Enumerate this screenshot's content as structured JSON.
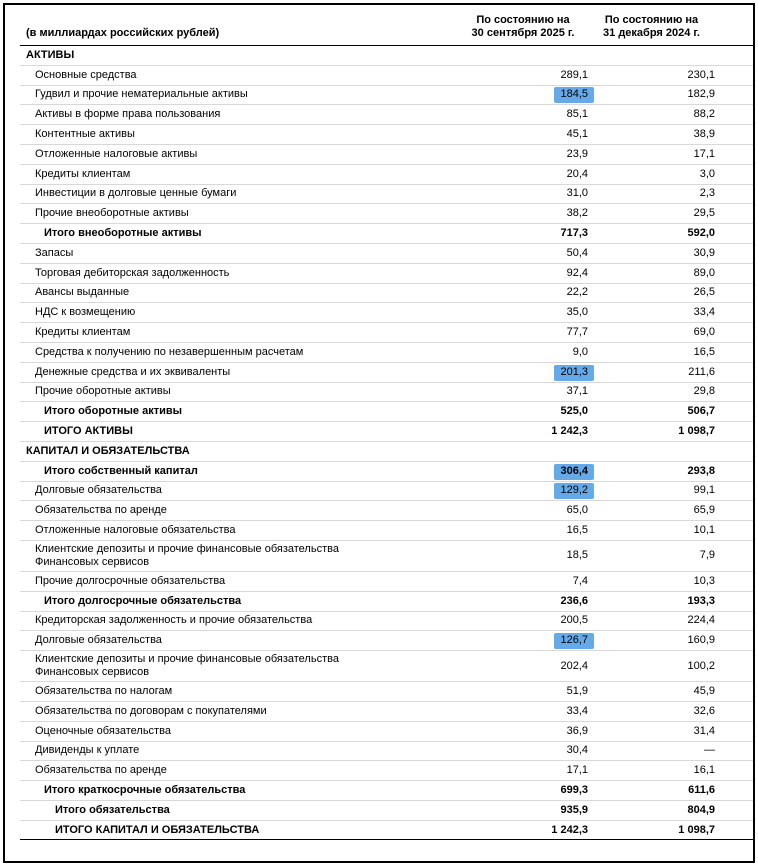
{
  "colors": {
    "highlight": "#64a9e8",
    "row_border": "#d8d8d8",
    "table_border": "#000000"
  },
  "table": {
    "unit_label": "(в миллиардах российских рублей)",
    "columns": [
      {
        "line1": "По состоянию на",
        "line2": "30 сентября 2025 г."
      },
      {
        "line1": "По состоянию на",
        "line2": "31 декабря 2024 г."
      }
    ],
    "rows": [
      {
        "label": "АКТИВЫ",
        "v1": "",
        "v2": "",
        "type": "section",
        "indent": 0
      },
      {
        "label": "Основные средства",
        "v1": "289,1",
        "v2": "230,1",
        "type": "normal",
        "indent": 1
      },
      {
        "label": "Гудвил и прочие нематериальные активы",
        "v1": "184,5",
        "v2": "182,9",
        "type": "normal",
        "indent": 1,
        "hl": true
      },
      {
        "label": "Активы в форме права пользования",
        "v1": "85,1",
        "v2": "88,2",
        "type": "normal",
        "indent": 1
      },
      {
        "label": "Контентные активы",
        "v1": "45,1",
        "v2": "38,9",
        "type": "normal",
        "indent": 1
      },
      {
        "label": "Отложенные налоговые активы",
        "v1": "23,9",
        "v2": "17,1",
        "type": "normal",
        "indent": 1
      },
      {
        "label": "Кредиты клиентам",
        "v1": "20,4",
        "v2": "3,0",
        "type": "normal",
        "indent": 1
      },
      {
        "label": "Инвестиции в долговые ценные бумаги",
        "v1": "31,0",
        "v2": "2,3",
        "type": "normal",
        "indent": 1
      },
      {
        "label": "Прочие внеоборотные активы",
        "v1": "38,2",
        "v2": "29,5",
        "type": "normal",
        "indent": 1
      },
      {
        "label": "Итого внеоборотные активы",
        "v1": "717,3",
        "v2": "592,0",
        "type": "subtotal",
        "indent": 2
      },
      {
        "label": "Запасы",
        "v1": "50,4",
        "v2": "30,9",
        "type": "normal",
        "indent": 1
      },
      {
        "label": "Торговая дебиторская задолженность",
        "v1": "92,4",
        "v2": "89,0",
        "type": "normal",
        "indent": 1
      },
      {
        "label": "Авансы выданные",
        "v1": "22,2",
        "v2": "26,5",
        "type": "normal",
        "indent": 1
      },
      {
        "label": "НДС к возмещению",
        "v1": "35,0",
        "v2": "33,4",
        "type": "normal",
        "indent": 1
      },
      {
        "label": "Кредиты клиентам",
        "v1": "77,7",
        "v2": "69,0",
        "type": "normal",
        "indent": 1
      },
      {
        "label": "Средства к получению по незавершенным расчетам",
        "v1": "9,0",
        "v2": "16,5",
        "type": "normal",
        "indent": 1
      },
      {
        "label": "Денежные средства и их эквиваленты",
        "v1": "201,3",
        "v2": "211,6",
        "type": "normal",
        "indent": 1,
        "hl": true
      },
      {
        "label": "Прочие оборотные активы",
        "v1": "37,1",
        "v2": "29,8",
        "type": "normal",
        "indent": 1
      },
      {
        "label": "Итого оборотные активы",
        "v1": "525,0",
        "v2": "506,7",
        "type": "subtotal",
        "indent": 2
      },
      {
        "label": "ИТОГО АКТИВЫ",
        "v1": "1 242,3",
        "v2": "1 098,7",
        "type": "total",
        "indent": 2
      },
      {
        "label": "КАПИТАЛ И ОБЯЗАТЕЛЬСТВА",
        "v1": "",
        "v2": "",
        "type": "section",
        "indent": 0
      },
      {
        "label": "Итого собственный капитал",
        "v1": "306,4",
        "v2": "293,8",
        "type": "subtotal",
        "indent": 2,
        "hl": true
      },
      {
        "label": "Долговые обязательства",
        "v1": "129,2",
        "v2": "99,1",
        "type": "normal",
        "indent": 1,
        "hl": true
      },
      {
        "label": "Обязательства по аренде",
        "v1": "65,0",
        "v2": "65,9",
        "type": "normal",
        "indent": 1
      },
      {
        "label": "Отложенные налоговые обязательства",
        "v1": "16,5",
        "v2": "10,1",
        "type": "normal",
        "indent": 1
      },
      {
        "label": "Клиентские депозиты и прочие финансовые обязательства Финансовых сервисов",
        "v1": "18,5",
        "v2": "7,9",
        "type": "normal",
        "indent": 1
      },
      {
        "label": "Прочие долгосрочные обязательства",
        "v1": "7,4",
        "v2": "10,3",
        "type": "normal",
        "indent": 1
      },
      {
        "label": "Итого долгосрочные обязательства",
        "v1": "236,6",
        "v2": "193,3",
        "type": "subtotal",
        "indent": 2
      },
      {
        "label": "Кредиторская задолженность и прочие обязательства",
        "v1": "200,5",
        "v2": "224,4",
        "type": "normal",
        "indent": 1
      },
      {
        "label": "Долговые обязательства",
        "v1": "126,7",
        "v2": "160,9",
        "type": "normal",
        "indent": 1,
        "hl": true
      },
      {
        "label": "Клиентские депозиты и прочие финансовые обязательства Финансовых сервисов",
        "v1": "202,4",
        "v2": "100,2",
        "type": "normal",
        "indent": 1
      },
      {
        "label": "Обязательства по налогам",
        "v1": "51,9",
        "v2": "45,9",
        "type": "normal",
        "indent": 1
      },
      {
        "label": "Обязательства по договорам с покупателями",
        "v1": "33,4",
        "v2": "32,6",
        "type": "normal",
        "indent": 1
      },
      {
        "label": "Оценочные обязательства",
        "v1": "36,9",
        "v2": "31,4",
        "type": "normal",
        "indent": 1
      },
      {
        "label": "Дивиденды к уплате",
        "v1": "30,4",
        "v2": "—",
        "type": "normal",
        "indent": 1
      },
      {
        "label": "Обязательства по аренде",
        "v1": "17,1",
        "v2": "16,1",
        "type": "normal",
        "indent": 1
      },
      {
        "label": "Итого краткосрочные обязательства",
        "v1": "699,3",
        "v2": "611,6",
        "type": "subtotal",
        "indent": 2
      },
      {
        "label": "Итого обязательства",
        "v1": "935,9",
        "v2": "804,9",
        "type": "total",
        "indent": 3
      },
      {
        "label": "ИТОГО КАПИТАЛ И ОБЯЗАТЕЛЬСТВА",
        "v1": "1 242,3",
        "v2": "1 098,7",
        "type": "total",
        "indent": 3
      }
    ]
  }
}
